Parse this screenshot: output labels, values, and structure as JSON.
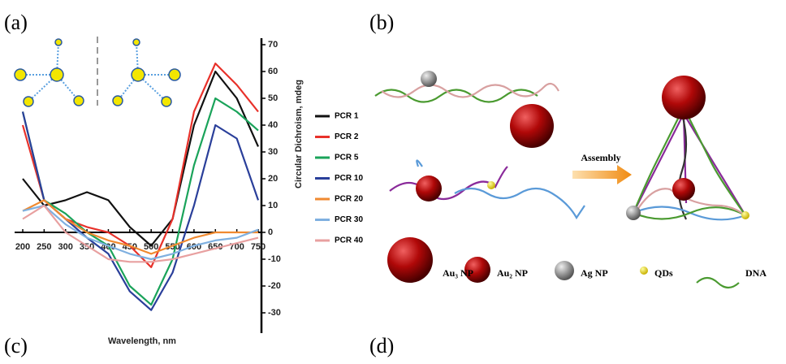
{
  "labels": {
    "a": "(a)",
    "b": "(b)",
    "c": "(c)",
    "d": "(d)"
  },
  "chart_data": {
    "type": "line",
    "xlabel": "Wavelength, nm",
    "ylabel": "Circular Dichroism, mdeg",
    "x": [
      200,
      250,
      300,
      350,
      400,
      450,
      500,
      550,
      600,
      650,
      700,
      750
    ],
    "xlim": [
      200,
      750
    ],
    "xticks": [
      200,
      250,
      300,
      350,
      400,
      450,
      500,
      550,
      600,
      650,
      700,
      750
    ],
    "ylim": [
      -30,
      70
    ],
    "yticks": [
      -30,
      -20,
      -10,
      0,
      10,
      20,
      30,
      40,
      50,
      60,
      70
    ],
    "legend": "right",
    "series": [
      {
        "name": "PCR 1",
        "color": "#111111",
        "values": [
          20,
          10,
          12,
          15,
          12,
          2,
          -5,
          5,
          40,
          60,
          50,
          32
        ]
      },
      {
        "name": "PCR 2",
        "color": "#e8312a",
        "values": [
          40,
          12,
          5,
          2,
          0,
          -5,
          -13,
          5,
          45,
          63,
          55,
          45
        ]
      },
      {
        "name": "PCR 5",
        "color": "#1aa35a",
        "values": [
          45,
          12,
          7,
          0,
          -5,
          -20,
          -27,
          -10,
          25,
          50,
          45,
          38
        ]
      },
      {
        "name": "PCR 10",
        "color": "#2a3f9a",
        "values": [
          45,
          12,
          5,
          -2,
          -8,
          -22,
          -29,
          -15,
          10,
          40,
          35,
          12
        ]
      },
      {
        "name": "PCR 20",
        "color": "#f08a30",
        "values": [
          8,
          12,
          5,
          0,
          -3,
          -5,
          -8,
          -5,
          -2,
          0,
          0,
          0
        ]
      },
      {
        "name": "PCR 30",
        "color": "#7fb0e0",
        "values": [
          8,
          10,
          3,
          -2,
          -5,
          -8,
          -10,
          -8,
          -5,
          -3,
          -2,
          1
        ]
      },
      {
        "name": "PCR 40",
        "color": "#e8a0a0",
        "values": [
          5,
          10,
          0,
          -5,
          -10,
          -11,
          -11,
          -10,
          -8,
          -6,
          -4,
          -2
        ]
      }
    ]
  },
  "diagram": {
    "assembly": "Assembly",
    "legend": [
      "Au₃ NP",
      "Au₂ NP",
      "Ag NP",
      "QDs",
      "DNA"
    ]
  }
}
